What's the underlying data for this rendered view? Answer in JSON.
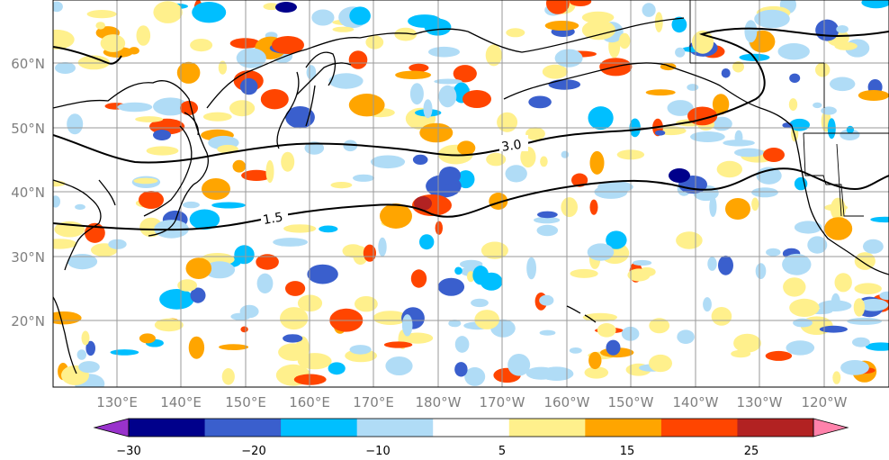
{
  "map": {
    "lat_labels": [
      "60°N",
      "50°N",
      "40°N",
      "30°N",
      "20°N"
    ],
    "lon_labels": [
      "130°E",
      "140°E",
      "150°E",
      "160°E",
      "170°E",
      "180°W",
      "170°W",
      "160°W",
      "150°W",
      "140°W",
      "130°W",
      "120°W"
    ],
    "contour_labels": [
      "1.5",
      "3.0"
    ]
  },
  "colorbar": {
    "tick_labels": [
      "−30",
      "−20",
      "−10",
      "5",
      "15",
      "25"
    ],
    "colors": [
      "#9932cc",
      "#00008b",
      "#3a5fcd",
      "#00bfff",
      "#b0dcf6",
      "#ffffff",
      "#fff08c",
      "#ffa500",
      "#ff4500",
      "#b22222",
      "#ff82ab"
    ],
    "extend_low_color": "#9932cc",
    "extend_high_color": "#ff82ab"
  }
}
